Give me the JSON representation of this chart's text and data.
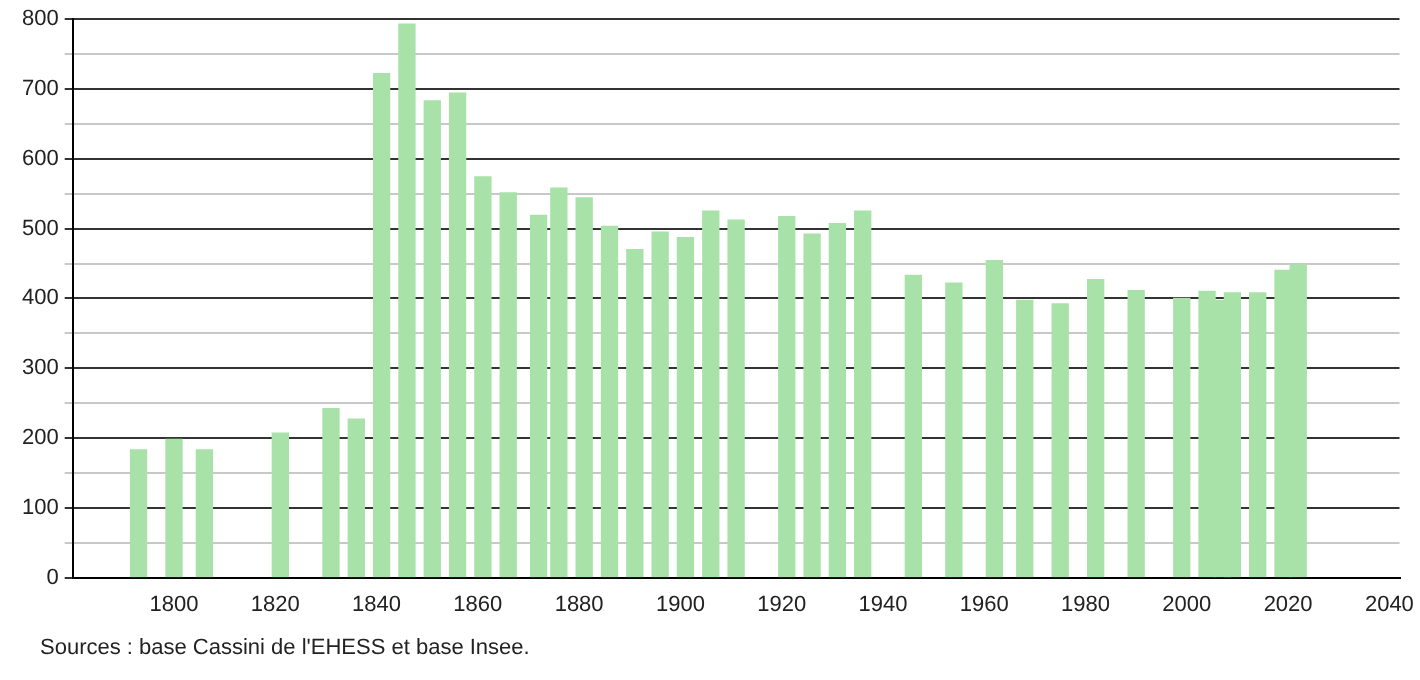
{
  "chart_data": {
    "type": "bar",
    "x": [
      1793,
      1800,
      1806,
      1821,
      1831,
      1836,
      1841,
      1846,
      1851,
      1856,
      1861,
      1866,
      1872,
      1876,
      1881,
      1886,
      1891,
      1896,
      1901,
      1906,
      1911,
      1921,
      1926,
      1931,
      1936,
      1946,
      1954,
      1962,
      1968,
      1975,
      1982,
      1990,
      1999,
      2004,
      2007,
      2009,
      2014,
      2019,
      2022
    ],
    "values": [
      183,
      198,
      183,
      207,
      242,
      227,
      722,
      793,
      683,
      694,
      574,
      551,
      519,
      558,
      544,
      503,
      470,
      495,
      487,
      525,
      512,
      517,
      492,
      507,
      525,
      433,
      422,
      454,
      397,
      392,
      427,
      411,
      400,
      410,
      397,
      408,
      408,
      440,
      448
    ],
    "color": "#a8e2a8",
    "xlim": [
      1780,
      2042
    ],
    "xticks": [
      1800,
      1820,
      1840,
      1860,
      1880,
      1900,
      1920,
      1940,
      1960,
      1980,
      2000,
      2020,
      2040
    ],
    "ylim": [
      0,
      800
    ],
    "yticks": [
      0,
      {
        "value": 50,
        "label": null
      },
      100,
      {
        "value": 150,
        "label": null
      },
      200,
      {
        "value": 250,
        "label": null
      },
      300,
      {
        "value": 350,
        "label": null
      },
      400,
      {
        "value": 450,
        "label": null
      },
      500,
      {
        "value": 550,
        "label": null
      },
      600,
      {
        "value": 650,
        "label": null
      },
      700,
      {
        "value": 750,
        "label": null
      },
      800
    ],
    "grid": "y",
    "legend": false,
    "annotations": [
      "Sources : base Cassini de l'EHESS et base Insee."
    ]
  }
}
